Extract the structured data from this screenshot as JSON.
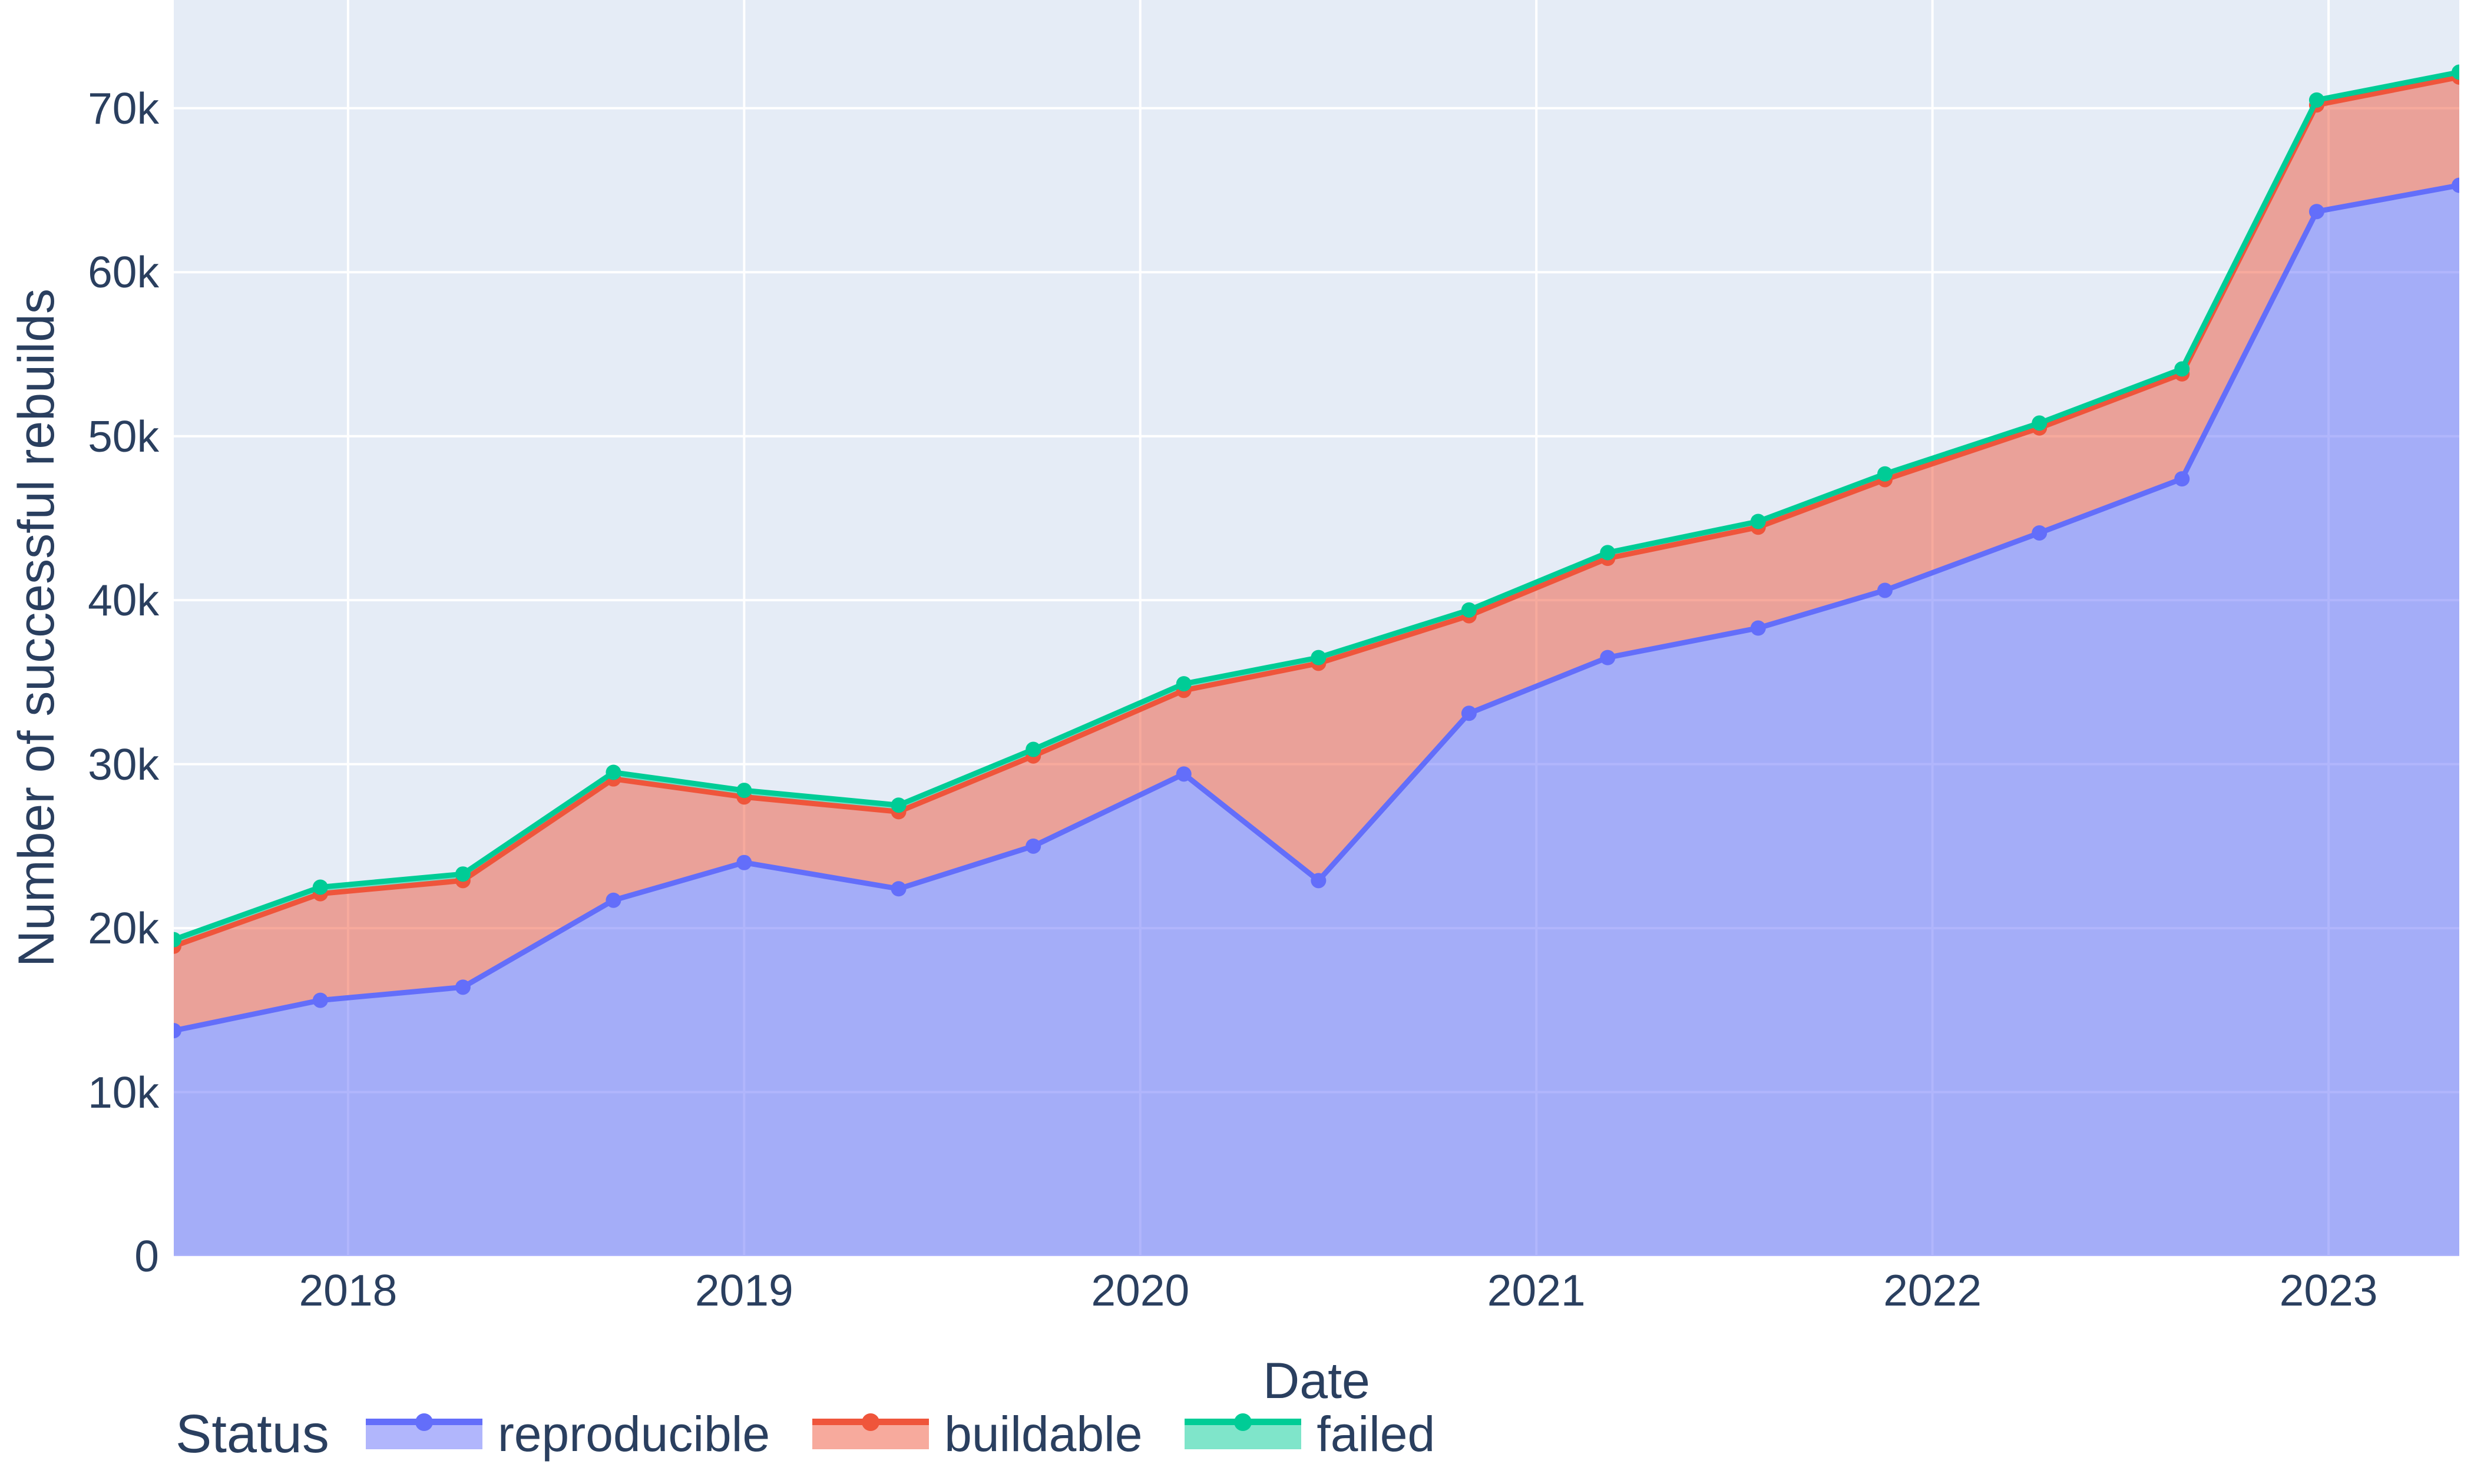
{
  "chart_data": {
    "type": "area",
    "stacked": true,
    "title": "",
    "xlabel": "Date",
    "ylabel": "Number of successful rebuilds",
    "legend_title": "Status",
    "legend_position": "bottom",
    "grid": true,
    "x_range": [
      2017.56,
      2023.33
    ],
    "y_range": [
      0,
      76600
    ],
    "x": [
      2017.56,
      2017.93,
      2018.29,
      2018.67,
      2019.0,
      2019.39,
      2019.73,
      2020.11,
      2020.45,
      2020.83,
      2021.18,
      2021.56,
      2021.88,
      2022.27,
      2022.63,
      2022.97,
      2023.33
    ],
    "series": [
      {
        "name": "reproducible",
        "color": "#636EFA",
        "values": [
          13750,
          15600,
          16400,
          21700,
          24000,
          22400,
          25000,
          29400,
          22900,
          33100,
          36500,
          38300,
          40600,
          44100,
          47400,
          63700,
          65300
        ]
      },
      {
        "name": "buildable",
        "color": "#EF553B",
        "values": [
          5150,
          6500,
          6500,
          7400,
          4000,
          4700,
          5500,
          5100,
          13250,
          5950,
          6050,
          6150,
          6750,
          6400,
          6400,
          6500,
          6600
        ]
      },
      {
        "name": "failed",
        "color": "#00CC96",
        "values": [
          400,
          400,
          400,
          400,
          400,
          400,
          400,
          400,
          350,
          350,
          350,
          350,
          350,
          300,
          300,
          300,
          300
        ]
      }
    ],
    "stacked_totals": [
      19300,
      22500,
      23300,
      29500,
      28400,
      27500,
      30900,
      34900,
      36500,
      39400,
      42900,
      44800,
      47700,
      50800,
      54100,
      70500,
      72200
    ],
    "x_ticks": [
      {
        "value": 2018,
        "label": "2018"
      },
      {
        "value": 2019,
        "label": "2019"
      },
      {
        "value": 2020,
        "label": "2020"
      },
      {
        "value": 2021,
        "label": "2021"
      },
      {
        "value": 2022,
        "label": "2022"
      },
      {
        "value": 2023,
        "label": "2023"
      }
    ],
    "y_ticks": [
      {
        "value": 0,
        "label": "0"
      },
      {
        "value": 10000,
        "label": "10k"
      },
      {
        "value": 20000,
        "label": "20k"
      },
      {
        "value": 30000,
        "label": "30k"
      },
      {
        "value": 40000,
        "label": "40k"
      },
      {
        "value": 50000,
        "label": "50k"
      },
      {
        "value": 60000,
        "label": "60k"
      },
      {
        "value": 70000,
        "label": "70k"
      }
    ],
    "colors": {
      "text": "#2a3f5f",
      "plot_bg": "#E5ECF6",
      "grid": "#ffffff",
      "paper": "#ffffff"
    }
  }
}
